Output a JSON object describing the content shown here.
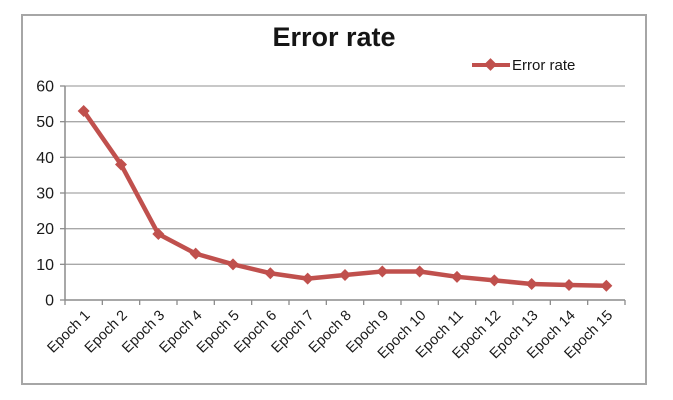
{
  "chart_data": {
    "type": "line",
    "title": "Error rate",
    "categories": [
      "Epoch 1",
      "Epoch 2",
      "Epoch 3",
      "Epoch 4",
      "Epoch 5",
      "Epoch 6",
      "Epoch 7",
      "Epoch 8",
      "Epoch 9",
      "Epoch 10",
      "Epoch 11",
      "Epoch 12",
      "Epoch 13",
      "Epoch 14",
      "Epoch 15"
    ],
    "series": [
      {
        "name": "Error rate",
        "marker": "diamond",
        "color": "#c0504d",
        "values": [
          53,
          38,
          18.5,
          13,
          10,
          7.5,
          6,
          7,
          8,
          8,
          6.5,
          5.5,
          4.5,
          4.2,
          4
        ]
      }
    ],
    "xlabel": "",
    "ylabel": "",
    "ylim": [
      0,
      60
    ],
    "yticks": [
      0,
      10,
      20,
      30,
      40,
      50,
      60
    ],
    "grid": true,
    "legend_position": "top-right",
    "x_label_rotation_deg": -45,
    "colors": {
      "series": "#c0504d",
      "gridline": "#a8a8a8",
      "axis": "#8c8c8c",
      "frame_border": "#a6a6a6",
      "text": "#1a1a1a",
      "background": "#ffffff"
    }
  }
}
